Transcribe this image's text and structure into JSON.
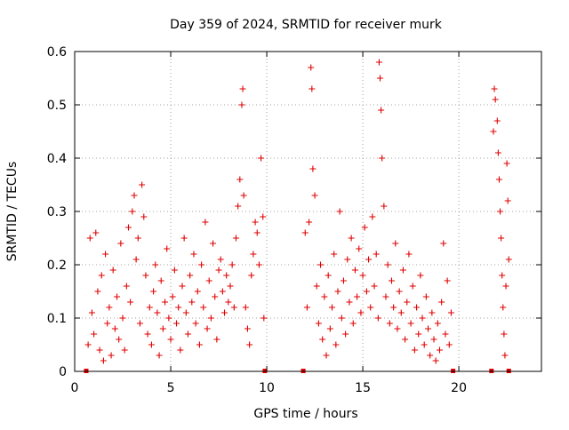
{
  "chart_data": {
    "type": "scatter",
    "title": "Day 359 of 2024, SRMTID for receiver murk",
    "xlabel": "GPS time / hours",
    "ylabel": "SRMTID / TECUs",
    "xlim": [
      0,
      24.3
    ],
    "ylim": [
      0,
      0.6
    ],
    "xticks": [
      0,
      5,
      10,
      15,
      20
    ],
    "yticks": [
      0,
      0.1,
      0.2,
      0.3,
      0.4,
      0.5,
      0.6
    ],
    "ytick_labels": [
      "0",
      "0.1",
      "0.2",
      "0.3",
      "0.4",
      "0.5",
      "0.6"
    ],
    "grid": true,
    "marker": "+",
    "series_color": "#e00000",
    "data_segments": [
      {
        "start": 0.6,
        "end": 9.9
      },
      {
        "start": 11.9,
        "end": 19.7
      },
      {
        "start": 21.7,
        "end": 22.6
      }
    ],
    "series": [
      {
        "name": "SRMTID",
        "points": [
          [
            0.7,
            0.05
          ],
          [
            0.8,
            0.25
          ],
          [
            0.9,
            0.11
          ],
          [
            1.0,
            0.07
          ],
          [
            1.1,
            0.26
          ],
          [
            1.2,
            0.15
          ],
          [
            1.3,
            0.04
          ],
          [
            1.4,
            0.18
          ],
          [
            1.5,
            0.02
          ],
          [
            1.6,
            0.22
          ],
          [
            1.7,
            0.09
          ],
          [
            1.8,
            0.12
          ],
          [
            1.9,
            0.03
          ],
          [
            2.0,
            0.19
          ],
          [
            2.1,
            0.08
          ],
          [
            2.2,
            0.14
          ],
          [
            2.3,
            0.06
          ],
          [
            2.4,
            0.24
          ],
          [
            2.5,
            0.1
          ],
          [
            2.6,
            0.04
          ],
          [
            2.7,
            0.16
          ],
          [
            2.8,
            0.27
          ],
          [
            2.9,
            0.13
          ],
          [
            3.0,
            0.3
          ],
          [
            3.1,
            0.33
          ],
          [
            3.2,
            0.21
          ],
          [
            3.3,
            0.25
          ],
          [
            3.4,
            0.09
          ],
          [
            3.5,
            0.35
          ],
          [
            3.6,
            0.29
          ],
          [
            3.7,
            0.18
          ],
          [
            3.8,
            0.07
          ],
          [
            3.9,
            0.12
          ],
          [
            4.0,
            0.05
          ],
          [
            4.1,
            0.15
          ],
          [
            4.2,
            0.2
          ],
          [
            4.3,
            0.11
          ],
          [
            4.4,
            0.03
          ],
          [
            4.5,
            0.17
          ],
          [
            4.6,
            0.08
          ],
          [
            4.7,
            0.13
          ],
          [
            4.8,
            0.23
          ],
          [
            4.9,
            0.1
          ],
          [
            5.0,
            0.06
          ],
          [
            5.1,
            0.14
          ],
          [
            5.2,
            0.19
          ],
          [
            5.3,
            0.09
          ],
          [
            5.4,
            0.12
          ],
          [
            5.5,
            0.04
          ],
          [
            5.6,
            0.16
          ],
          [
            5.7,
            0.25
          ],
          [
            5.8,
            0.11
          ],
          [
            5.9,
            0.07
          ],
          [
            6.0,
            0.18
          ],
          [
            6.1,
            0.13
          ],
          [
            6.2,
            0.22
          ],
          [
            6.3,
            0.09
          ],
          [
            6.4,
            0.15
          ],
          [
            6.5,
            0.05
          ],
          [
            6.6,
            0.2
          ],
          [
            6.7,
            0.12
          ],
          [
            6.8,
            0.28
          ],
          [
            6.9,
            0.08
          ],
          [
            7.0,
            0.17
          ],
          [
            7.1,
            0.1
          ],
          [
            7.2,
            0.24
          ],
          [
            7.3,
            0.14
          ],
          [
            7.4,
            0.06
          ],
          [
            7.5,
            0.19
          ],
          [
            7.6,
            0.21
          ],
          [
            7.7,
            0.15
          ],
          [
            7.8,
            0.11
          ],
          [
            7.9,
            0.18
          ],
          [
            8.0,
            0.13
          ],
          [
            8.1,
            0.16
          ],
          [
            8.2,
            0.2
          ],
          [
            8.3,
            0.12
          ],
          [
            8.4,
            0.25
          ],
          [
            8.5,
            0.31
          ],
          [
            8.6,
            0.36
          ],
          [
            8.7,
            0.5
          ],
          [
            8.75,
            0.53
          ],
          [
            8.8,
            0.33
          ],
          [
            8.9,
            0.12
          ],
          [
            9.0,
            0.08
          ],
          [
            9.1,
            0.05
          ],
          [
            9.2,
            0.18
          ],
          [
            9.3,
            0.22
          ],
          [
            9.4,
            0.28
          ],
          [
            9.5,
            0.26
          ],
          [
            9.6,
            0.2
          ],
          [
            9.7,
            0.4
          ],
          [
            9.8,
            0.29
          ],
          [
            9.85,
            0.1
          ],
          [
            12.0,
            0.26
          ],
          [
            12.1,
            0.12
          ],
          [
            12.2,
            0.28
          ],
          [
            12.3,
            0.57
          ],
          [
            12.35,
            0.53
          ],
          [
            12.4,
            0.38
          ],
          [
            12.5,
            0.33
          ],
          [
            12.6,
            0.16
          ],
          [
            12.7,
            0.09
          ],
          [
            12.8,
            0.2
          ],
          [
            12.9,
            0.06
          ],
          [
            13.0,
            0.14
          ],
          [
            13.1,
            0.03
          ],
          [
            13.2,
            0.18
          ],
          [
            13.3,
            0.08
          ],
          [
            13.4,
            0.12
          ],
          [
            13.5,
            0.22
          ],
          [
            13.6,
            0.05
          ],
          [
            13.7,
            0.15
          ],
          [
            13.8,
            0.3
          ],
          [
            13.9,
            0.1
          ],
          [
            14.0,
            0.17
          ],
          [
            14.1,
            0.07
          ],
          [
            14.2,
            0.21
          ],
          [
            14.3,
            0.13
          ],
          [
            14.4,
            0.25
          ],
          [
            14.5,
            0.09
          ],
          [
            14.6,
            0.19
          ],
          [
            14.7,
            0.14
          ],
          [
            14.8,
            0.23
          ],
          [
            14.9,
            0.11
          ],
          [
            15.0,
            0.18
          ],
          [
            15.1,
            0.27
          ],
          [
            15.2,
            0.15
          ],
          [
            15.3,
            0.21
          ],
          [
            15.4,
            0.12
          ],
          [
            15.5,
            0.29
          ],
          [
            15.6,
            0.16
          ],
          [
            15.7,
            0.22
          ],
          [
            15.8,
            0.1
          ],
          [
            15.85,
            0.58
          ],
          [
            15.9,
            0.55
          ],
          [
            15.95,
            0.49
          ],
          [
            16.0,
            0.4
          ],
          [
            16.1,
            0.31
          ],
          [
            16.2,
            0.14
          ],
          [
            16.3,
            0.2
          ],
          [
            16.4,
            0.09
          ],
          [
            16.5,
            0.17
          ],
          [
            16.6,
            0.12
          ],
          [
            16.7,
            0.24
          ],
          [
            16.8,
            0.08
          ],
          [
            16.9,
            0.15
          ],
          [
            17.0,
            0.11
          ],
          [
            17.1,
            0.19
          ],
          [
            17.2,
            0.06
          ],
          [
            17.3,
            0.13
          ],
          [
            17.4,
            0.22
          ],
          [
            17.5,
            0.09
          ],
          [
            17.6,
            0.16
          ],
          [
            17.7,
            0.04
          ],
          [
            17.8,
            0.12
          ],
          [
            17.9,
            0.07
          ],
          [
            18.0,
            0.18
          ],
          [
            18.1,
            0.1
          ],
          [
            18.2,
            0.05
          ],
          [
            18.3,
            0.14
          ],
          [
            18.4,
            0.08
          ],
          [
            18.5,
            0.03
          ],
          [
            18.6,
            0.11
          ],
          [
            18.7,
            0.06
          ],
          [
            18.8,
            0.02
          ],
          [
            18.9,
            0.09
          ],
          [
            19.0,
            0.04
          ],
          [
            19.1,
            0.13
          ],
          [
            19.2,
            0.24
          ],
          [
            19.3,
            0.07
          ],
          [
            19.4,
            0.17
          ],
          [
            19.5,
            0.05
          ],
          [
            19.6,
            0.11
          ],
          [
            21.8,
            0.45
          ],
          [
            21.85,
            0.53
          ],
          [
            21.9,
            0.51
          ],
          [
            22.0,
            0.47
          ],
          [
            22.05,
            0.41
          ],
          [
            22.1,
            0.36
          ],
          [
            22.15,
            0.3
          ],
          [
            22.2,
            0.25
          ],
          [
            22.25,
            0.18
          ],
          [
            22.3,
            0.12
          ],
          [
            22.35,
            0.07
          ],
          [
            22.4,
            0.03
          ],
          [
            22.45,
            0.16
          ],
          [
            22.5,
            0.39
          ],
          [
            22.55,
            0.32
          ],
          [
            22.6,
            0.21
          ]
        ]
      }
    ]
  }
}
